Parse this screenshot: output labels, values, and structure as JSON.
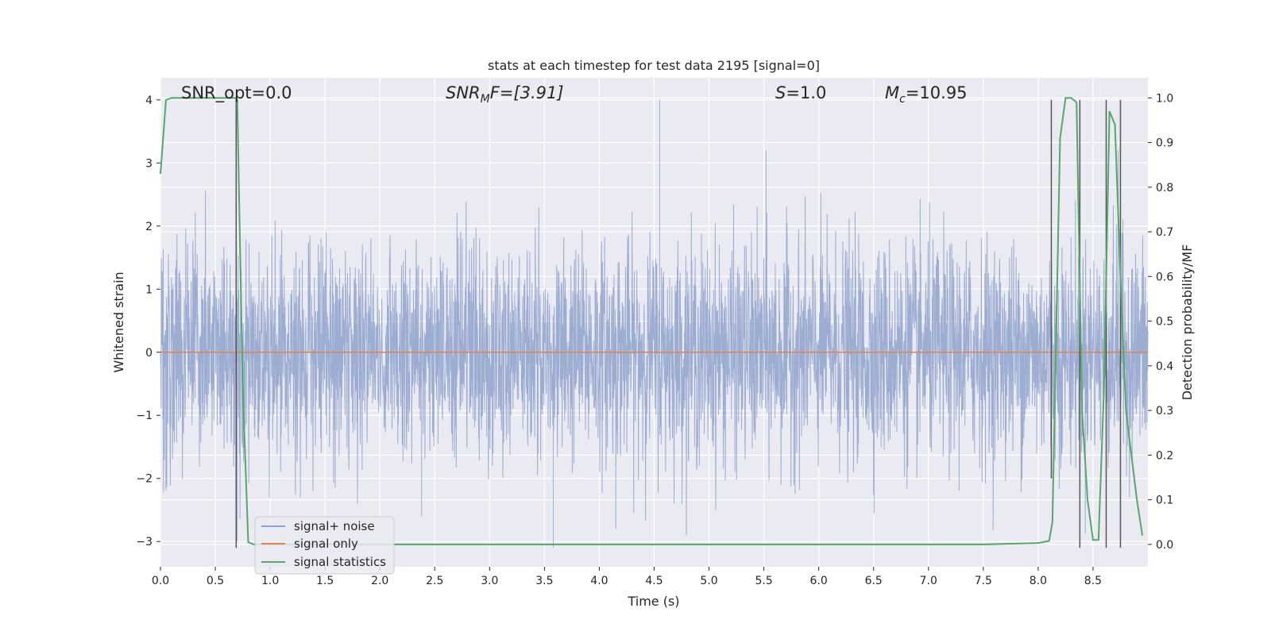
{
  "chart_data": {
    "type": "line",
    "title": "stats at each timestep for test data 2195 [signal=0]",
    "xlabel": "Time (s)",
    "ylabel": "Whitened strain",
    "y2label": "Detection probability/MF",
    "xlim": [
      0.0,
      9.0
    ],
    "ylim": [
      -3.4,
      4.35
    ],
    "y2lim": [
      -0.05,
      1.045
    ],
    "xticks": [
      "0.0",
      "0.5",
      "1.0",
      "1.5",
      "2.0",
      "2.5",
      "3.0",
      "3.5",
      "4.0",
      "4.5",
      "5.0",
      "5.5",
      "6.0",
      "6.5",
      "7.0",
      "7.5",
      "8.0",
      "8.5"
    ],
    "yticks": [
      "−3",
      "−2",
      "−1",
      "0",
      "1",
      "2",
      "3",
      "4"
    ],
    "y2ticks": [
      "0.0",
      "0.1",
      "0.2",
      "0.3",
      "0.4",
      "0.5",
      "0.6",
      "0.7",
      "0.8",
      "0.9",
      "1.0"
    ],
    "grid": true,
    "legend_placement": "lower-left",
    "annotations": {
      "snr_opt": "SNR_opt=0.0",
      "snr_mf_name": "SNR",
      "snr_mf_sub": "M",
      "snr_mf_rest": "F=[3.91]",
      "s_name": "S",
      "s_rest": "=1.0",
      "mc_name": "M",
      "mc_sub": "c",
      "mc_rest": "=10.95"
    },
    "series": [
      {
        "name": "signal+ noise",
        "color": "#8fa2cc",
        "note": "dense whitened noise, approx +/-1.2 core with spikes to +4 and -3.1",
        "spikes": [
          {
            "x": 4.55,
            "y": 4.0
          },
          {
            "x": 5.52,
            "y": 3.2
          },
          {
            "x": 8.73,
            "y": 3.2
          },
          {
            "x": 3.58,
            "y": -3.1
          },
          {
            "x": 0.7,
            "y": -3.0
          },
          {
            "x": 2.38,
            "y": -2.6
          },
          {
            "x": 4.15,
            "y": -2.8
          }
        ]
      },
      {
        "name": "signal only",
        "color": "#dd8452",
        "x": [
          0.0,
          9.0
        ],
        "y": [
          0.0,
          0.0
        ]
      },
      {
        "name": "signal statistics",
        "color": "#55a868",
        "axis": "right",
        "x": [
          0.0,
          0.05,
          0.1,
          0.2,
          0.3,
          0.4,
          0.5,
          0.6,
          0.68,
          0.7,
          0.75,
          0.8,
          0.85,
          1.0,
          2.0,
          3.0,
          4.0,
          5.0,
          6.0,
          7.0,
          7.5,
          8.0,
          8.1,
          8.13,
          8.2,
          8.25,
          8.3,
          8.35,
          8.4,
          8.45,
          8.5,
          8.55,
          8.6,
          8.65,
          8.7,
          8.75,
          8.8,
          8.85,
          8.9,
          8.95
        ],
        "y": [
          0.83,
          0.995,
          1.0,
          1.0,
          1.0,
          1.0,
          1.0,
          1.0,
          1.0,
          0.995,
          0.35,
          0.005,
          0.0,
          0.0,
          0.0,
          0.0,
          0.0,
          0.0,
          0.0,
          0.0,
          0.0,
          0.003,
          0.008,
          0.05,
          0.91,
          1.0,
          1.0,
          0.99,
          0.3,
          0.1,
          0.01,
          0.01,
          0.35,
          0.97,
          0.94,
          0.6,
          0.3,
          0.2,
          0.1,
          0.02
        ]
      }
    ],
    "vertical_markers": {
      "color": "#555555",
      "lines": [
        {
          "x": 0.69,
          "y1": -3.1,
          "y2": 4.0
        },
        {
          "x": 8.12,
          "y1": -2.0,
          "y2": 4.0
        },
        {
          "x": 8.38,
          "y1": -3.1,
          "y2": 4.0
        },
        {
          "x": 8.62,
          "y1": -3.1,
          "y2": 4.0
        },
        {
          "x": 8.75,
          "y1": -3.1,
          "y2": 4.0
        }
      ]
    },
    "style": {
      "axes_bg": "#eaeaf2",
      "grid_color": "#ffffff"
    }
  }
}
